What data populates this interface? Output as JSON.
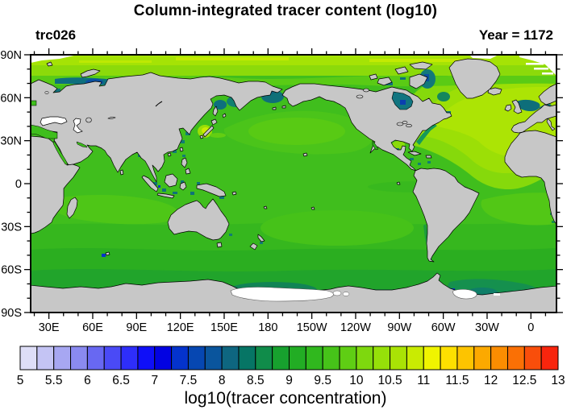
{
  "title": "Column-integrated tracer content (log10)",
  "header": {
    "left": "trc026",
    "right": "Year = 1172"
  },
  "map": {
    "projection": "equirectangular, Pacific-centered",
    "lon_range_deg_east": [
      17.5,
      377.5
    ],
    "lat_range": [
      -90,
      90
    ],
    "minor_tick_interval_deg": 10,
    "lat_ticks": {
      "labels": [
        "90N",
        "60N",
        "30N",
        "0",
        "30S",
        "60S",
        "90S"
      ],
      "values": [
        90,
        60,
        30,
        0,
        -30,
        -60,
        -90
      ]
    },
    "lon_ticks": {
      "labels": [
        "30E",
        "60E",
        "90E",
        "120E",
        "150E",
        "180",
        "150W",
        "120W",
        "90W",
        "60W",
        "30W",
        "0"
      ],
      "values_deg_east": [
        30,
        60,
        90,
        120,
        150,
        180,
        210,
        240,
        270,
        300,
        330,
        360
      ]
    }
  },
  "colorbar": {
    "title": "log10(tracer concentration)",
    "min": 5,
    "max": 13,
    "box_step": 0.25,
    "tick_labels": [
      "5",
      "5.5",
      "6",
      "6.5",
      "7",
      "7.5",
      "8",
      "8.5",
      "9",
      "9.5",
      "10",
      "10.5",
      "11",
      "11.5",
      "12",
      "12.5",
      "13"
    ],
    "colors": [
      "#DEDEF7",
      "#C4C4F4",
      "#A7A7F2",
      "#8A8AF0",
      "#6868F2",
      "#4A4AF6",
      "#2E2EFA",
      "#0F0FF8",
      "#0202E2",
      "#0433CC",
      "#0647B2",
      "#0A559D",
      "#0E6680",
      "#067565",
      "#108C4A",
      "#17A12E",
      "#22AD24",
      "#30B81E",
      "#46C319",
      "#5FCE14",
      "#7ED80E",
      "#96E009",
      "#A9E305",
      "#C9EB02",
      "#F0F400",
      "#FDE000",
      "#FDC400",
      "#FCA900",
      "#FB8D01",
      "#FA7005",
      "#F94E0B",
      "#F8250D"
    ]
  },
  "colors": {
    "land": "#c7c7c7",
    "coastline": "#000000",
    "ocean_base": "#40BE1D",
    "no_data": "#ffffff",
    "frame": "#000000"
  },
  "chart_data": {
    "type": "heatmap",
    "title": "Column-integrated tracer content (log10)",
    "field_label": "log10(tracer concentration)",
    "tracer_name": "trc026",
    "model_year": 1172,
    "colorbar_range": [
      5,
      13
    ],
    "colorbar_interval": 0.25,
    "label_interval": 0.5,
    "projection": "global equirectangular map, longitude 20E eastward to 20E (Pacific centered), latitude 90S-90N",
    "regions": [
      {
        "region": "open ocean global background",
        "value_log10": 9.6
      },
      {
        "region": "Arctic Ocean surface band",
        "value_log10": 10.4
      },
      {
        "region": "North Atlantic subtropical gyre",
        "value_log10": 10.6
      },
      {
        "region": "Norwegian / Greenland Sea",
        "value_log10": 10.5
      },
      {
        "region": "Sea of Japan bright spot",
        "value_log10": 11.0
      },
      {
        "region": "North Pacific (30-45N)",
        "value_log10": 9.9
      },
      {
        "region": "South Indian Ocean (10-25S)",
        "value_log10": 9.9
      },
      {
        "region": "Southern Ocean (45-60S)",
        "value_log10": 9.3
      },
      {
        "region": "Antarctic coastal band",
        "value_log10": 8.9
      },
      {
        "region": "Siberian Arctic shelf coastal patches",
        "value_log10": 7.8
      },
      {
        "region": "Hudson Bay",
        "value_log10": 8.2
      },
      {
        "region": "North Sea / Baltic approaches",
        "value_log10": 8.3
      },
      {
        "region": "Indonesian archipelago coastal patches",
        "value_log10": 8.2
      },
      {
        "region": "isolated Antarctic coast spots",
        "value_log10": 7.2
      },
      {
        "region": "Black Sea",
        "value_log10": null,
        "note": "no data (white)"
      },
      {
        "region": "Caspian Sea",
        "value_log10": null,
        "note": "no data (white)"
      },
      {
        "region": "Ross and Ronne ice shelves",
        "value_log10": null,
        "note": "no data (white)"
      }
    ]
  }
}
